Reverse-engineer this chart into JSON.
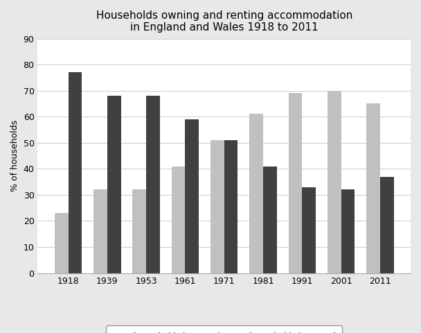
{
  "title": "Households owning and renting accommodation\nin England and Wales 1918 to 2011",
  "ylabel": "% of households",
  "years": [
    1918,
    1939,
    1953,
    1961,
    1971,
    1981,
    1991,
    2001,
    2011
  ],
  "owned": [
    23,
    32,
    32,
    41,
    51,
    61,
    69,
    70,
    65
  ],
  "rented": [
    77,
    68,
    68,
    59,
    51,
    41,
    33,
    32,
    37
  ],
  "owned_color": "#c0c0c0",
  "rented_color": "#404040",
  "ylim": [
    0,
    90
  ],
  "yticks": [
    0,
    10,
    20,
    30,
    40,
    50,
    60,
    70,
    80,
    90
  ],
  "bar_width": 0.35,
  "legend_owned": "households in owned\naccommodation",
  "legend_rented": "households in rented\naccommodation",
  "bg_color": "#e8e8e8",
  "plot_bg_color": "#ffffff",
  "title_fontsize": 11,
  "axis_fontsize": 9,
  "tick_fontsize": 9,
  "legend_fontsize": 8.5
}
